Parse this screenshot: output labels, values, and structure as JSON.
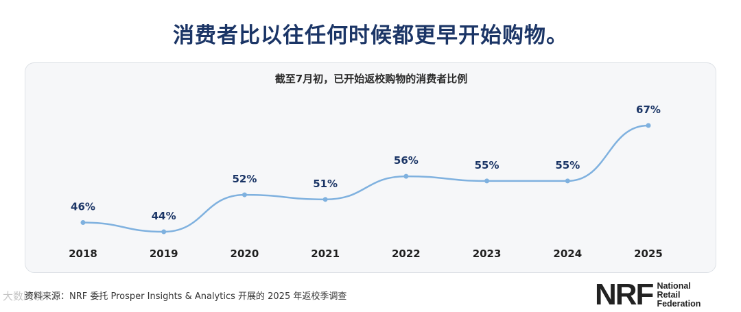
{
  "headline": "消费者比以往任何时候都更早开始购物。",
  "chart_data": {
    "type": "line",
    "title": "截至7月初，已开始返校购物的消费者比例",
    "categories": [
      "2018",
      "2019",
      "2020",
      "2021",
      "2022",
      "2023",
      "2024",
      "2025"
    ],
    "values": [
      46,
      44,
      52,
      51,
      56,
      55,
      55,
      67
    ],
    "value_labels": [
      "46%",
      "44%",
      "52%",
      "51%",
      "56%",
      "55%",
      "55%",
      "67%"
    ],
    "unit": "%",
    "xlabel": "",
    "ylabel": "",
    "grid": false,
    "colors": {
      "line": "#7fb1df",
      "label": "#1b3566"
    }
  },
  "source": "资料来源：NRF 委托 Prosper Insights & Analytics 开展的 2025 年返校季调查",
  "watermark": "大数跨境",
  "logo": {
    "mark": "NRF",
    "line1": "National",
    "line2": "Retail",
    "line3": "Federation"
  }
}
